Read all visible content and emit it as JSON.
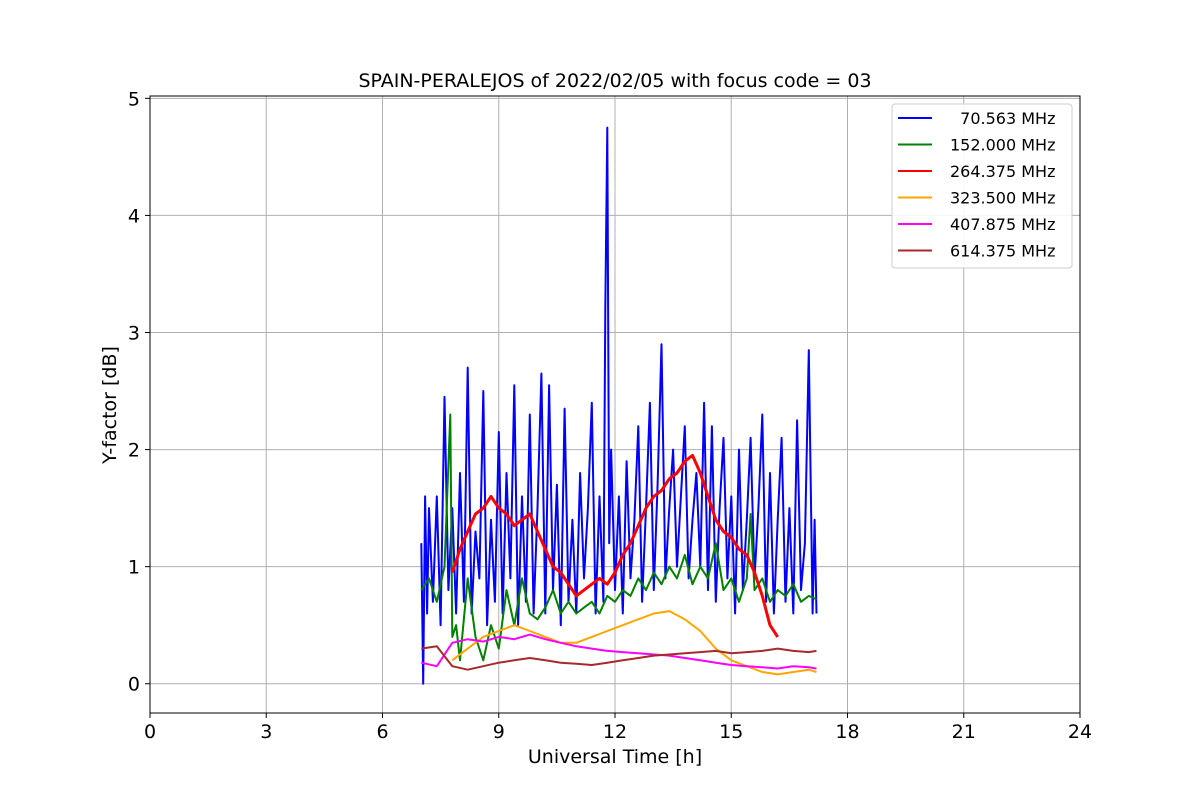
{
  "chart_data": {
    "type": "line",
    "title": "SPAIN-PERALEJOS of 2022/02/05 with focus code = 03",
    "xlabel": "Universal Time [h]",
    "ylabel": "Y-factor [dB]",
    "xlim": [
      0,
      24
    ],
    "ylim": [
      -0.25,
      5.02
    ],
    "xticks": [
      "0",
      "3",
      "6",
      "9",
      "12",
      "15",
      "18",
      "21",
      "24"
    ],
    "yticks": [
      "0",
      "1",
      "2",
      "3",
      "4",
      "5"
    ],
    "grid": true,
    "legend_position": "top-right",
    "series": [
      {
        "name": "  70.563 MHz",
        "color": "#0000ff",
        "x": [
          7.0,
          7.05,
          7.1,
          7.15,
          7.2,
          7.3,
          7.4,
          7.5,
          7.6,
          7.7,
          7.8,
          7.9,
          8.0,
          8.1,
          8.2,
          8.3,
          8.4,
          8.5,
          8.6,
          8.7,
          8.8,
          8.9,
          9.0,
          9.1,
          9.2,
          9.3,
          9.4,
          9.5,
          9.6,
          9.7,
          9.8,
          9.9,
          10.0,
          10.1,
          10.2,
          10.3,
          10.4,
          10.5,
          10.6,
          10.7,
          10.8,
          10.9,
          11.0,
          11.1,
          11.2,
          11.3,
          11.4,
          11.5,
          11.6,
          11.7,
          11.75,
          11.8,
          11.85,
          11.9,
          12.0,
          12.1,
          12.2,
          12.3,
          12.4,
          12.5,
          12.6,
          12.7,
          12.8,
          12.9,
          13.0,
          13.1,
          13.2,
          13.3,
          13.4,
          13.5,
          13.6,
          13.7,
          13.8,
          13.9,
          14.0,
          14.1,
          14.2,
          14.3,
          14.4,
          14.5,
          14.6,
          14.7,
          14.8,
          14.9,
          15.0,
          15.1,
          15.2,
          15.3,
          15.4,
          15.5,
          15.6,
          15.7,
          15.8,
          15.9,
          16.0,
          16.1,
          16.2,
          16.3,
          16.4,
          16.5,
          16.6,
          16.7,
          16.8,
          16.9,
          17.0,
          17.1,
          17.15,
          17.2
        ],
        "y": [
          1.2,
          0.0,
          1.6,
          0.6,
          1.5,
          0.7,
          1.6,
          0.5,
          2.45,
          0.8,
          1.5,
          0.6,
          1.8,
          0.7,
          2.7,
          0.6,
          1.3,
          0.9,
          2.5,
          0.5,
          1.4,
          0.7,
          2.15,
          0.6,
          1.8,
          0.9,
          2.55,
          0.5,
          1.6,
          0.7,
          2.3,
          0.6,
          1.5,
          2.65,
          0.6,
          2.55,
          0.8,
          1.7,
          0.5,
          2.35,
          0.7,
          1.4,
          0.6,
          1.8,
          0.9,
          1.5,
          2.4,
          0.6,
          1.6,
          0.7,
          3.2,
          4.75,
          1.2,
          2.0,
          0.8,
          1.6,
          0.6,
          1.9,
          0.9,
          1.4,
          2.2,
          0.7,
          1.5,
          2.4,
          0.8,
          1.7,
          2.9,
          0.9,
          1.5,
          2.0,
          1.0,
          1.6,
          2.2,
          0.9,
          1.4,
          1.8,
          1.0,
          2.4,
          0.8,
          2.2,
          0.7,
          1.5,
          2.1,
          0.9,
          1.6,
          0.6,
          2.0,
          0.8,
          1.4,
          2.1,
          0.9,
          1.5,
          2.3,
          0.7,
          1.8,
          0.6,
          1.4,
          2.1,
          0.7,
          1.5,
          0.6,
          2.25,
          0.8,
          1.2,
          2.85,
          0.6,
          1.4,
          0.6
        ]
      },
      {
        "name": "152.000 MHz",
        "color": "#008000",
        "x": [
          7.0,
          7.2,
          7.4,
          7.6,
          7.75,
          7.8,
          7.9,
          8.0,
          8.2,
          8.4,
          8.6,
          8.8,
          9.0,
          9.2,
          9.4,
          9.6,
          9.8,
          10.0,
          10.2,
          10.4,
          10.6,
          10.8,
          11.0,
          11.2,
          11.4,
          11.6,
          11.8,
          12.0,
          12.2,
          12.4,
          12.6,
          12.8,
          13.0,
          13.2,
          13.4,
          13.6,
          13.8,
          14.0,
          14.2,
          14.4,
          14.6,
          14.8,
          15.0,
          15.2,
          15.4,
          15.5,
          15.6,
          15.8,
          16.0,
          16.2,
          16.4,
          16.6,
          16.8,
          17.0,
          17.2
        ],
        "y": [
          0.8,
          0.9,
          0.7,
          1.0,
          2.3,
          0.4,
          0.5,
          0.2,
          0.9,
          0.4,
          0.2,
          0.5,
          0.3,
          0.8,
          0.5,
          0.9,
          0.6,
          0.55,
          0.65,
          0.8,
          0.6,
          0.7,
          0.6,
          0.65,
          0.7,
          0.6,
          0.75,
          0.7,
          0.8,
          0.75,
          0.9,
          0.8,
          0.95,
          0.85,
          1.0,
          0.9,
          1.1,
          0.85,
          1.0,
          0.9,
          1.2,
          0.8,
          0.9,
          0.7,
          0.9,
          1.45,
          0.8,
          0.9,
          0.7,
          0.8,
          0.75,
          0.85,
          0.7,
          0.75,
          0.72
        ]
      },
      {
        "name": "264.375 MHz",
        "color": "#ff0000",
        "x": [
          7.8,
          8.0,
          8.2,
          8.4,
          8.6,
          8.8,
          9.0,
          9.2,
          9.4,
          9.6,
          9.8,
          10.0,
          10.2,
          10.4,
          10.6,
          10.8,
          11.0,
          11.2,
          11.4,
          11.6,
          11.8,
          12.0,
          12.2,
          12.4,
          12.6,
          12.8,
          13.0,
          13.2,
          13.4,
          13.6,
          13.8,
          14.0,
          14.2,
          14.4,
          14.6,
          14.8,
          15.0,
          15.2,
          15.4,
          15.6,
          15.8,
          16.0,
          16.2
        ],
        "y": [
          0.95,
          1.15,
          1.3,
          1.45,
          1.5,
          1.6,
          1.5,
          1.45,
          1.35,
          1.4,
          1.45,
          1.3,
          1.15,
          1.0,
          0.95,
          0.85,
          0.75,
          0.8,
          0.85,
          0.9,
          0.85,
          0.95,
          1.1,
          1.2,
          1.35,
          1.5,
          1.6,
          1.65,
          1.75,
          1.8,
          1.9,
          1.95,
          1.8,
          1.6,
          1.4,
          1.3,
          1.25,
          1.15,
          1.1,
          0.95,
          0.75,
          0.5,
          0.4
        ]
      },
      {
        "name": "323.500 MHz",
        "color": "#ffa500",
        "x": [
          7.8,
          8.2,
          8.6,
          9.0,
          9.4,
          9.8,
          10.2,
          10.6,
          11.0,
          11.4,
          11.8,
          12.2,
          12.6,
          13.0,
          13.4,
          13.8,
          14.2,
          14.6,
          15.0,
          15.4,
          15.8,
          16.2,
          16.6,
          17.0,
          17.2
        ],
        "y": [
          0.2,
          0.3,
          0.4,
          0.45,
          0.5,
          0.45,
          0.4,
          0.35,
          0.35,
          0.4,
          0.45,
          0.5,
          0.55,
          0.6,
          0.62,
          0.55,
          0.45,
          0.3,
          0.2,
          0.15,
          0.1,
          0.08,
          0.1,
          0.12,
          0.1
        ]
      },
      {
        "name": "407.875 MHz",
        "color": "#ff00ff",
        "x": [
          7.0,
          7.4,
          7.8,
          8.2,
          8.6,
          9.0,
          9.4,
          9.8,
          10.2,
          10.6,
          11.0,
          11.4,
          11.8,
          12.2,
          12.6,
          13.0,
          13.4,
          13.8,
          14.2,
          14.6,
          15.0,
          15.4,
          15.8,
          16.2,
          16.6,
          17.0,
          17.2
        ],
        "y": [
          0.18,
          0.15,
          0.35,
          0.38,
          0.36,
          0.4,
          0.38,
          0.42,
          0.38,
          0.35,
          0.32,
          0.3,
          0.28,
          0.27,
          0.26,
          0.25,
          0.24,
          0.22,
          0.2,
          0.18,
          0.16,
          0.15,
          0.14,
          0.13,
          0.15,
          0.14,
          0.13
        ]
      },
      {
        "name": "614.375 MHz",
        "color": "#a52a2a",
        "x": [
          7.0,
          7.4,
          7.8,
          8.2,
          8.6,
          9.0,
          9.4,
          9.8,
          10.2,
          10.6,
          11.0,
          11.4,
          11.8,
          12.2,
          12.6,
          13.0,
          13.4,
          13.8,
          14.2,
          14.6,
          15.0,
          15.4,
          15.8,
          16.2,
          16.6,
          17.0,
          17.2
        ],
        "y": [
          0.3,
          0.32,
          0.15,
          0.12,
          0.15,
          0.18,
          0.2,
          0.22,
          0.2,
          0.18,
          0.17,
          0.16,
          0.18,
          0.2,
          0.22,
          0.24,
          0.25,
          0.26,
          0.27,
          0.28,
          0.26,
          0.27,
          0.28,
          0.3,
          0.28,
          0.27,
          0.28
        ]
      }
    ]
  }
}
